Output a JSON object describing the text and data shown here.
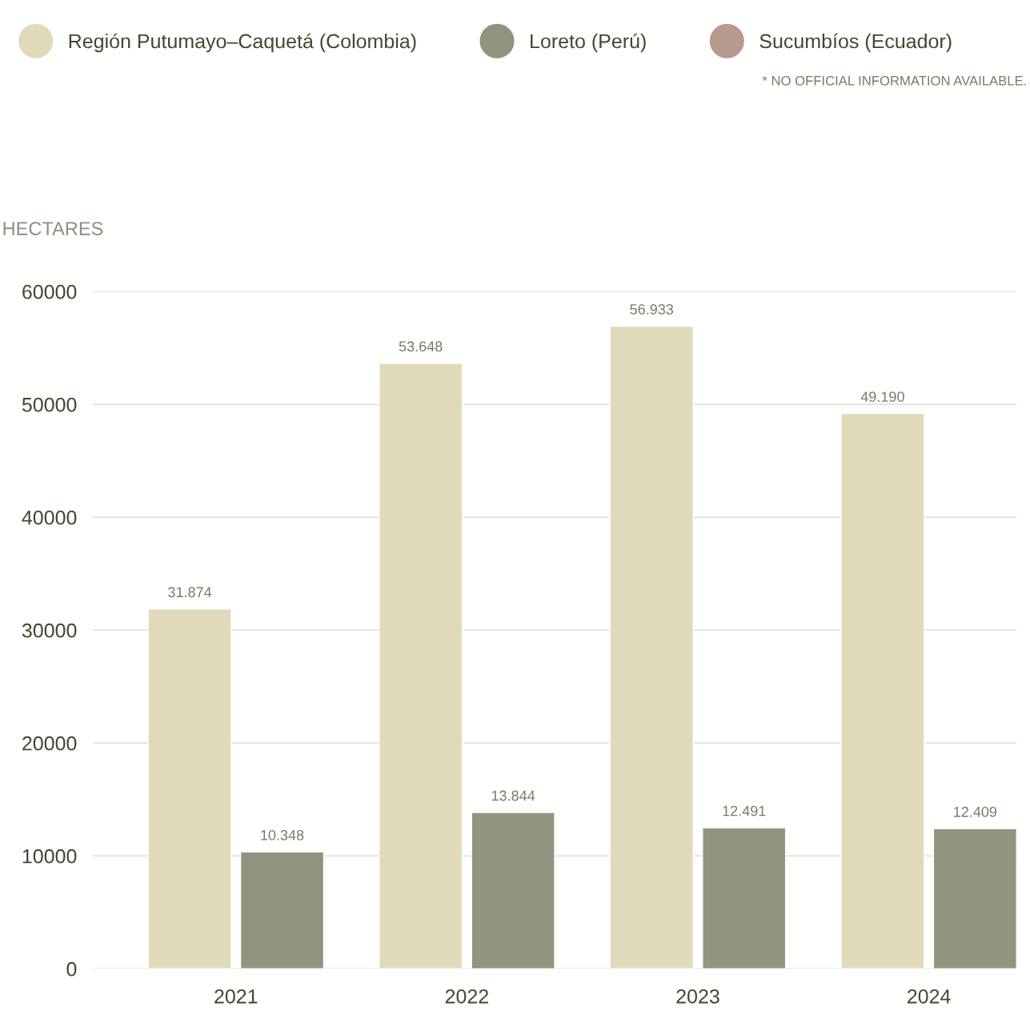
{
  "chart_data": {
    "type": "bar",
    "ylabel": "HECTARES",
    "categories": [
      "2021",
      "2022",
      "2023",
      "2024"
    ],
    "series": [
      {
        "name": "Región Putumayo–Caquetá (Colombia)",
        "color": "#e0dabb",
        "values": [
          31874,
          53648,
          56933,
          49190
        ],
        "value_labels": [
          "31.874",
          "53.648",
          "56.933",
          "49.190"
        ]
      },
      {
        "name": "Loreto (Perú)",
        "color": "#8f957e",
        "values": [
          10348,
          13844,
          12491,
          12409
        ],
        "value_labels": [
          "10.348",
          "13.844",
          "12.491",
          "12.409"
        ]
      },
      {
        "name": "Sucumbíos (Ecuador)",
        "color": "#b89a8e",
        "values": [
          null,
          null,
          null,
          null
        ]
      }
    ],
    "annotations": [
      "* NO OFFICIAL INFORMATION AVAILABLE."
    ],
    "ylim": [
      0,
      60000
    ],
    "yticks": [
      0,
      10000,
      20000,
      30000,
      40000,
      50000,
      60000
    ],
    "grid": "y",
    "legend": "top"
  }
}
